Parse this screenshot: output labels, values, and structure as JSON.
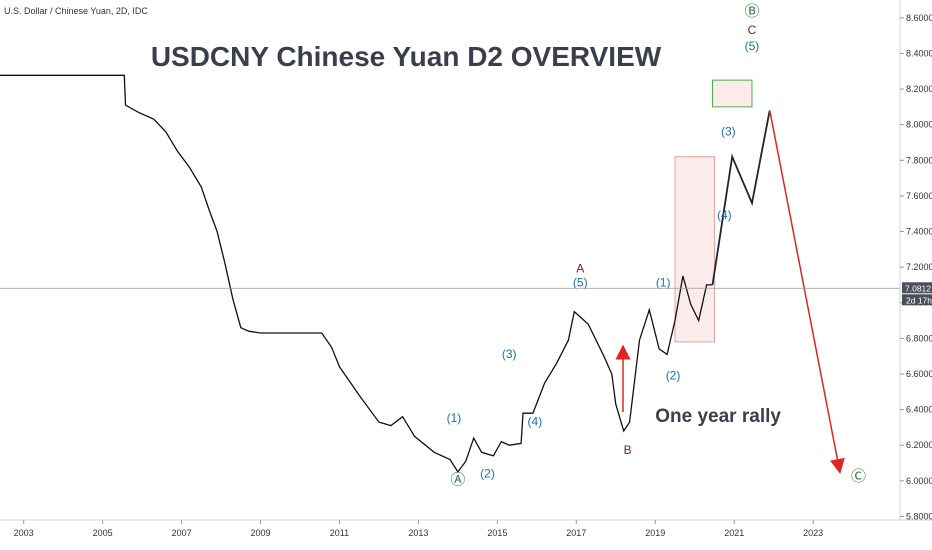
{
  "chart_data": {
    "type": "line",
    "symbol_label": "U.S. Dollar / Chinese Yuan, 2D, IDC",
    "title": "USDCNY Chinese Yuan D2 OVERVIEW",
    "xlabel": "",
    "ylabel": "",
    "xlim": [
      2002.4,
      2025.2
    ],
    "ylim": [
      5.78,
      8.7
    ],
    "x_ticks": [
      "2003",
      "2005",
      "2007",
      "2009",
      "2011",
      "2013",
      "2015",
      "2017",
      "2019",
      "2021",
      "2023"
    ],
    "y_ticks": [
      "5.8000",
      "6.0000",
      "6.2000",
      "6.4000",
      "6.6000",
      "6.8000",
      "7.0000",
      "7.2000",
      "7.4000",
      "7.6000",
      "7.8000",
      "8.0000",
      "8.2000",
      "8.4000",
      "8.6000"
    ],
    "current_price": "7.0812",
    "countdown": "2d 17h",
    "series": [
      {
        "values": [
          [
            2002.4,
            8.277
          ],
          [
            2003.0,
            8.277
          ],
          [
            2004.0,
            8.277
          ],
          [
            2005.0,
            8.277
          ],
          [
            2005.55,
            8.277
          ],
          [
            2005.58,
            8.11
          ],
          [
            2005.9,
            8.07
          ],
          [
            2006.3,
            8.03
          ],
          [
            2006.6,
            7.96
          ],
          [
            2006.9,
            7.85
          ],
          [
            2007.2,
            7.76
          ],
          [
            2007.5,
            7.65
          ],
          [
            2007.7,
            7.52
          ],
          [
            2007.9,
            7.4
          ],
          [
            2008.1,
            7.22
          ],
          [
            2008.3,
            7.02
          ],
          [
            2008.5,
            6.86
          ],
          [
            2008.7,
            6.84
          ],
          [
            2009.0,
            6.83
          ],
          [
            2009.5,
            6.83
          ],
          [
            2010.0,
            6.83
          ],
          [
            2010.55,
            6.83
          ],
          [
            2010.8,
            6.75
          ],
          [
            2011.0,
            6.64
          ],
          [
            2011.5,
            6.48
          ],
          [
            2012.0,
            6.33
          ],
          [
            2012.3,
            6.31
          ],
          [
            2012.6,
            6.36
          ],
          [
            2012.9,
            6.25
          ],
          [
            2013.4,
            6.16
          ],
          [
            2013.8,
            6.12
          ],
          [
            2014.0,
            6.05
          ],
          [
            2014.2,
            6.11
          ],
          [
            2014.4,
            6.24
          ],
          [
            2014.6,
            6.16
          ],
          [
            2014.9,
            6.14
          ],
          [
            2015.1,
            6.22
          ],
          [
            2015.3,
            6.2
          ],
          [
            2015.6,
            6.21
          ],
          [
            2015.65,
            6.38
          ],
          [
            2015.9,
            6.38
          ],
          [
            2016.2,
            6.55
          ],
          [
            2016.5,
            6.66
          ],
          [
            2016.8,
            6.79
          ],
          [
            2016.95,
            6.95
          ],
          [
            2017.3,
            6.88
          ],
          [
            2017.7,
            6.7
          ],
          [
            2017.9,
            6.6
          ],
          [
            2018.0,
            6.43
          ],
          [
            2018.2,
            6.28
          ],
          [
            2018.35,
            6.33
          ],
          [
            2018.6,
            6.79
          ],
          [
            2018.85,
            6.96
          ],
          [
            2019.1,
            6.74
          ],
          [
            2019.3,
            6.71
          ],
          [
            2019.5,
            6.9
          ],
          [
            2019.7,
            7.15
          ],
          [
            2019.9,
            6.99
          ],
          [
            2020.1,
            6.9
          ],
          [
            2020.3,
            7.1
          ],
          [
            2020.45,
            7.1
          ]
        ]
      }
    ],
    "projection": [
      [
        2020.45,
        7.1
      ],
      [
        2020.95,
        7.82
      ],
      [
        2021.45,
        7.56
      ],
      [
        2021.9,
        8.08
      ]
    ],
    "projection_down": [
      [
        2021.9,
        8.08
      ],
      [
        2023.65,
        6.08
      ]
    ],
    "target_boxes": [
      {
        "x0": 2019.5,
        "x1": 2020.5,
        "y0": 6.78,
        "y1": 7.82,
        "color": "#e8a0a0"
      },
      {
        "x0": 2020.45,
        "x1": 2021.45,
        "y0": 8.1,
        "y1": 8.25,
        "color": "#4caf50"
      }
    ],
    "wave_labels": [
      {
        "text": "Ⓐ",
        "x": 2014.0,
        "y": 5.98,
        "color": "#2b7a3b"
      },
      {
        "text": "(1)",
        "x": 2013.9,
        "y": 6.33,
        "color": "#1e6fa8"
      },
      {
        "text": "(2)",
        "x": 2014.75,
        "y": 6.02,
        "color": "#1e6fa8"
      },
      {
        "text": "(3)",
        "x": 2015.3,
        "y": 6.69,
        "color": "#1e6fa8"
      },
      {
        "text": "(4)",
        "x": 2015.95,
        "y": 6.31,
        "color": "#1e6fa8"
      },
      {
        "text": "A",
        "x": 2017.1,
        "y": 7.17,
        "color": "#6e1f27"
      },
      {
        "text": "(5)",
        "x": 2017.1,
        "y": 7.09,
        "color": "#1e6fa8"
      },
      {
        "text": "B",
        "x": 2018.3,
        "y": 6.15,
        "color": "#6e1f27"
      },
      {
        "text": "(1)",
        "x": 2019.2,
        "y": 7.09,
        "color": "#1e6fa8"
      },
      {
        "text": "(2)",
        "x": 2019.45,
        "y": 6.57,
        "color": "#1e6fa8"
      },
      {
        "text": "(3)",
        "x": 2020.85,
        "y": 7.94,
        "color": "#1e6fa8"
      },
      {
        "text": "(4)",
        "x": 2020.75,
        "y": 7.47,
        "color": "#1e6fa8"
      },
      {
        "text": "Ⓑ",
        "x": 2021.45,
        "y": 8.61,
        "color": "#2b7a3b"
      },
      {
        "text": "C",
        "x": 2021.45,
        "y": 8.51,
        "color": "#6e1f27"
      },
      {
        "text": "(5)",
        "x": 2021.45,
        "y": 8.42,
        "color": "#1e6fa8"
      },
      {
        "text": "Ⓒ",
        "x": 2024.15,
        "y": 6.0,
        "color": "#2b7a3b"
      }
    ],
    "annotation": {
      "text": "One year rally",
      "x": 2019.0,
      "y": 6.33
    },
    "grid": false,
    "colors": {
      "price": "#111111",
      "projection": "#1e2433",
      "projection_down": "#e02424",
      "arrow": "#e02424",
      "axis": "#333333",
      "title": "#3a3f4b",
      "price_tag": "#4a4f5a"
    }
  }
}
